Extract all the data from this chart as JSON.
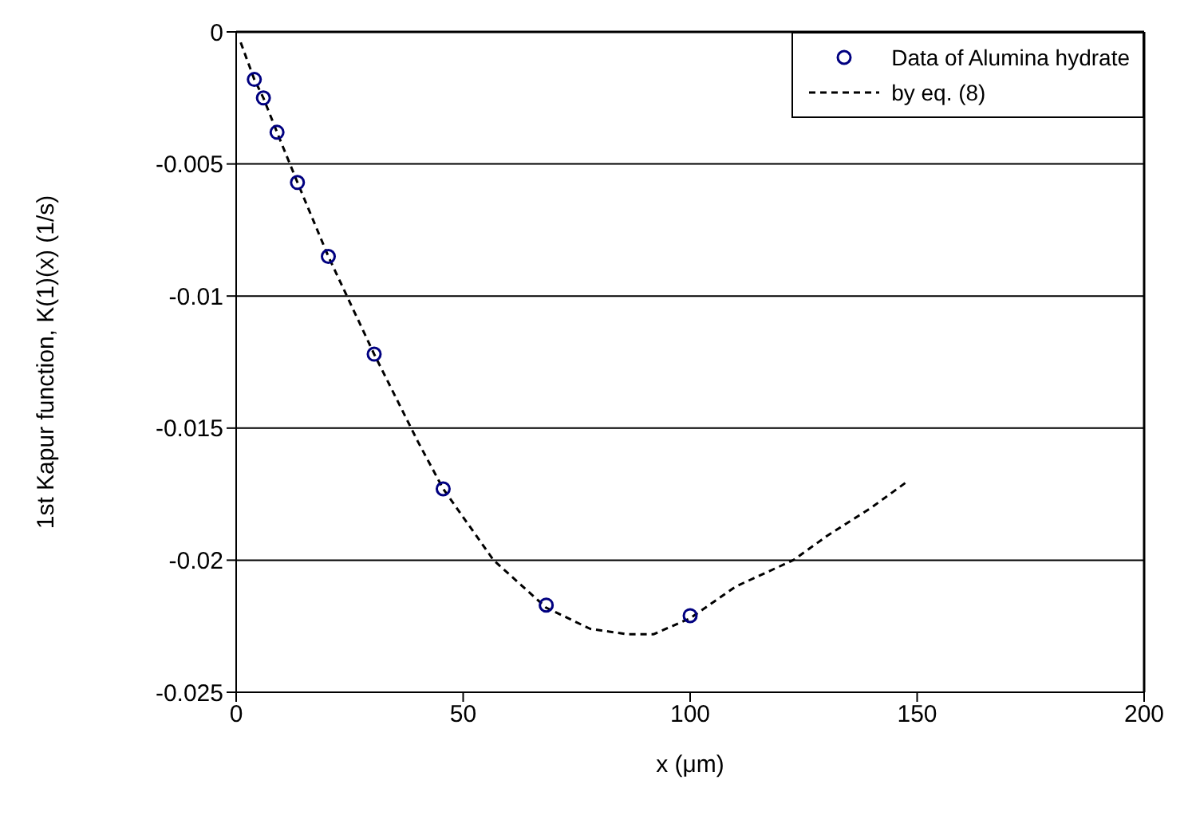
{
  "chart_data": {
    "type": "scatter",
    "xlabel": "x (μm)",
    "ylabel": "1st Kapur function, K(1)(x) (1/s)",
    "xlim": [
      0,
      200
    ],
    "xticks": [
      0,
      50,
      100,
      150,
      200
    ],
    "ylim": [
      -0.025,
      0
    ],
    "yticks": [
      -0.025,
      -0.02,
      -0.015,
      -0.01,
      -0.005,
      0
    ],
    "grid": "y",
    "legend": "top right",
    "series": [
      {
        "name": "Data of Alumina hydrate",
        "marker": "circle",
        "color": "#000080",
        "x": [
          4,
          6,
          9,
          13.5,
          20.3,
          30.4,
          45.6,
          68.3,
          100
        ],
        "values": [
          -0.0018,
          -0.0025,
          -0.0038,
          -0.0057,
          -0.0085,
          -0.0122,
          -0.0173,
          -0.0217,
          -0.0221
        ]
      },
      {
        "name": "by eq. (8)",
        "type": "line",
        "line_style": "dashed",
        "marker": "none",
        "color": "#000000",
        "x": [
          1,
          4,
          6,
          9,
          13.5,
          20.3,
          30.4,
          40,
          45.6,
          56.7,
          68.3,
          78,
          86,
          92,
          100,
          110,
          122.7,
          130,
          140,
          148
        ],
        "values": [
          -0.0004,
          -0.0018,
          -0.0025,
          -0.0038,
          -0.0057,
          -0.0085,
          -0.0122,
          -0.0155,
          -0.0173,
          -0.02,
          -0.0218,
          -0.0226,
          -0.0228,
          -0.0228,
          -0.0222,
          -0.021,
          -0.02,
          -0.0191,
          -0.018,
          -0.017
        ]
      }
    ]
  }
}
